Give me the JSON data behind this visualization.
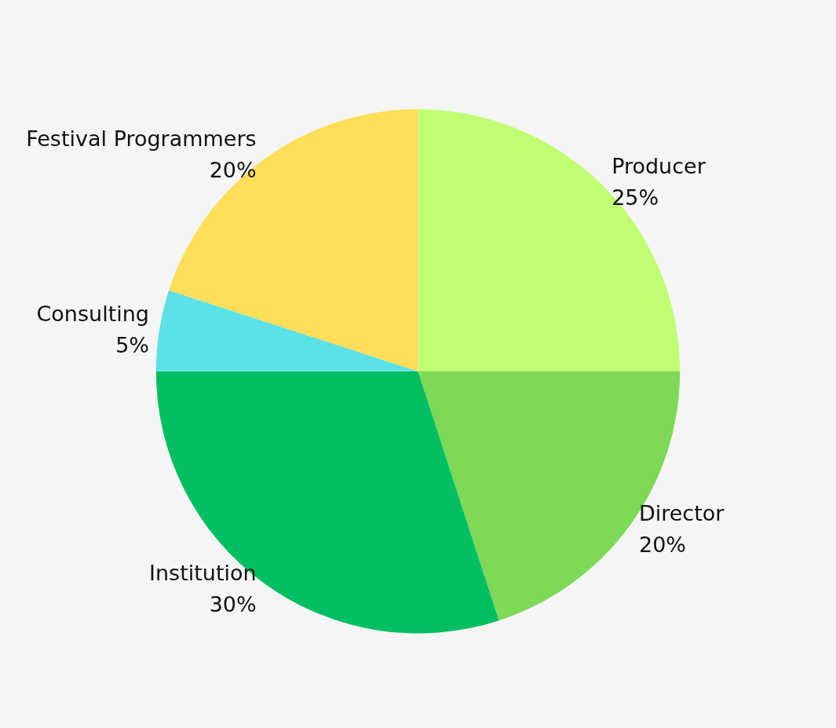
{
  "chart_data": {
    "type": "pie",
    "categories": [
      "Producer",
      "Director",
      "Institution",
      "Consulting",
      "Festival Programmers"
    ],
    "values": [
      25,
      20,
      30,
      5,
      20
    ],
    "colors": [
      "#c1ff72",
      "#7ed957",
      "#00bf63",
      "#5ce1e6",
      "#ffde59"
    ],
    "value_labels": [
      "25%",
      "20%",
      "30%",
      "5%",
      "20%"
    ]
  }
}
